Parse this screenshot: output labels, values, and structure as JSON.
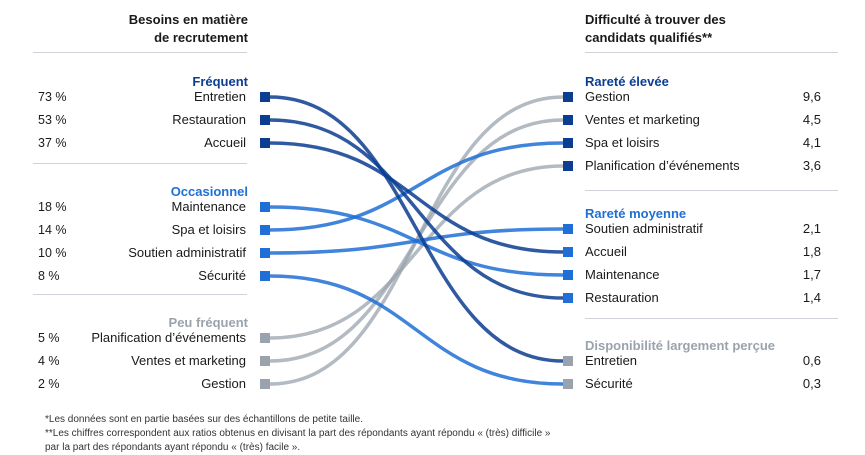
{
  "left": {
    "header_line1": "Besoins en matière",
    "header_line2": "de recrutement",
    "groups": [
      {
        "label": "Fréquent",
        "color": "#0b3d91",
        "items": [
          {
            "pct": "73 %",
            "label": "Entretien"
          },
          {
            "pct": "53 %",
            "label": "Restauration"
          },
          {
            "pct": "37 %",
            "label": "Accueil"
          }
        ]
      },
      {
        "label": "Occasionnel",
        "color": "#1f6fd6",
        "items": [
          {
            "pct": "18 %",
            "label": "Maintenance"
          },
          {
            "pct": "14 %",
            "label": "Spa et loisirs"
          },
          {
            "pct": "10 %",
            "label": "Soutien administratif"
          },
          {
            "pct": "8 %",
            "label": "Sécurité"
          }
        ]
      },
      {
        "label": "Peu fréquent",
        "color": "#9aa3ad",
        "items": [
          {
            "pct": "5 %",
            "label": "Planification d’événements"
          },
          {
            "pct": "4 %",
            "label": "Ventes et marketing"
          },
          {
            "pct": "2 %",
            "label": "Gestion"
          }
        ]
      }
    ]
  },
  "right": {
    "header_line1": "Difficulté à trouver des",
    "header_line2": "candidats qualifiés**",
    "groups": [
      {
        "label": "Rareté élevée",
        "color": "#0b3d91",
        "items": [
          {
            "label": "Gestion",
            "value": "9,6"
          },
          {
            "label": "Ventes et marketing",
            "value": "4,5"
          },
          {
            "label": "Spa et loisirs",
            "value": "4,1"
          },
          {
            "label": "Planification d’événements",
            "value": "3,6"
          }
        ]
      },
      {
        "label": "Rareté moyenne",
        "color": "#1f6fd6",
        "items": [
          {
            "label": "Soutien administratif",
            "value": "2,1"
          },
          {
            "label": "Accueil",
            "value": "1,8"
          },
          {
            "label": "Maintenance",
            "value": "1,7"
          },
          {
            "label": "Restauration",
            "value": "1,4"
          }
        ]
      },
      {
        "label": "Disponibilité largement perçue",
        "color": "#9aa3ad",
        "items": [
          {
            "label": "Entretien",
            "value": "0,6"
          },
          {
            "label": "Sécurité",
            "value": "0,3"
          }
        ]
      }
    ]
  },
  "links": [
    {
      "from": "Entretien",
      "to": "Entretien",
      "color": "#0b3d91"
    },
    {
      "from": "Restauration",
      "to": "Restauration",
      "color": "#0b3d91"
    },
    {
      "from": "Accueil",
      "to": "Accueil",
      "color": "#0b3d91"
    },
    {
      "from": "Maintenance",
      "to": "Maintenance",
      "color": "#1f6fd6"
    },
    {
      "from": "Spa et loisirs",
      "to": "Spa et loisirs",
      "color": "#1f6fd6"
    },
    {
      "from": "Soutien administratif",
      "to": "Soutien administratif",
      "color": "#1f6fd6"
    },
    {
      "from": "Sécurité",
      "to": "Sécurité",
      "color": "#1f6fd6"
    },
    {
      "from": "Planification d’événements",
      "to": "Planification d’événements",
      "color": "#9aa3ad"
    },
    {
      "from": "Ventes et marketing",
      "to": "Ventes et marketing",
      "color": "#9aa3ad"
    },
    {
      "from": "Gestion",
      "to": "Gestion",
      "color": "#9aa3ad"
    }
  ],
  "footnotes": [
    "*Les données sont en partie basées sur des échantillons de petite taille.",
    "**Les chiffres correspondent aux ratios obtenus en divisant la part des répondants ayant répondu « (très) difficile »",
    "par la part des répondants ayant répondu « (très) facile »."
  ]
}
